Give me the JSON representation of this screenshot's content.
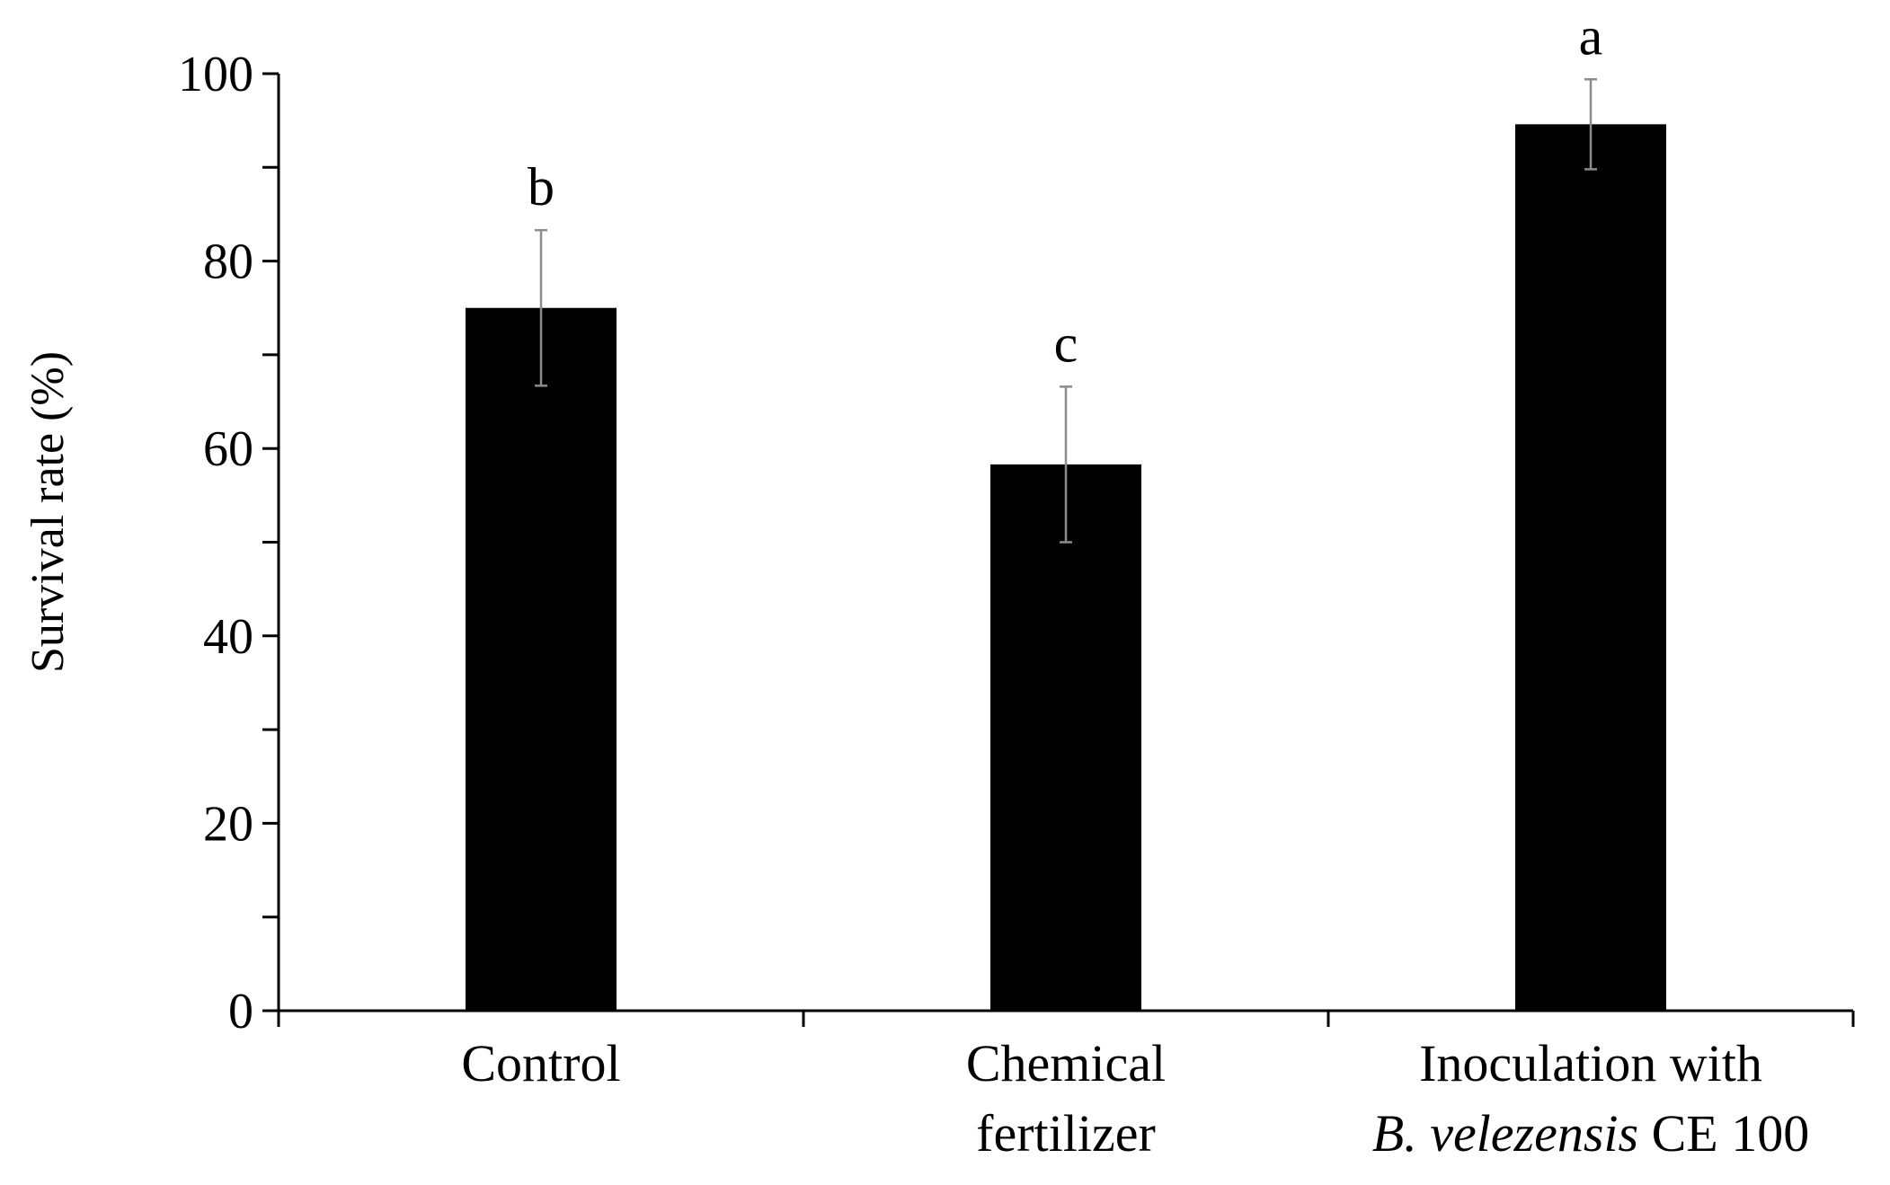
{
  "chart_data": {
    "type": "bar",
    "title": "",
    "xlabel": "",
    "ylabel": "Survival rate (%)",
    "ylim": [
      0,
      100
    ],
    "y_major_ticks": [
      0,
      20,
      40,
      60,
      80,
      100
    ],
    "y_tick_labels": [
      "0",
      "20",
      "40",
      "60",
      "80",
      "100"
    ],
    "y_minor_step": 10,
    "categories": [
      {
        "lines": [
          [
            {
              "text": "Control",
              "italic": false
            }
          ]
        ]
      },
      {
        "lines": [
          [
            {
              "text": "Chemical",
              "italic": false
            }
          ],
          [
            {
              "text": "fertilizer",
              "italic": false
            }
          ]
        ]
      },
      {
        "lines": [
          [
            {
              "text": "Inoculation with",
              "italic": false
            }
          ],
          [
            {
              "text": "B. velezensis",
              "italic": true
            },
            {
              "text": " CE 100",
              "italic": false
            }
          ]
        ]
      }
    ],
    "series": [
      {
        "name": "Survival rate",
        "values": [
          75,
          58.3,
          94.6
        ],
        "errors": [
          8.3,
          8.3,
          4.8
        ],
        "significance": [
          "b",
          "c",
          "a"
        ]
      }
    ],
    "grid": false,
    "legend": "none",
    "colors": {
      "bar": "#000000",
      "error_bar": "#8c8c8c",
      "axis": "#000000",
      "text": "#000000"
    }
  }
}
